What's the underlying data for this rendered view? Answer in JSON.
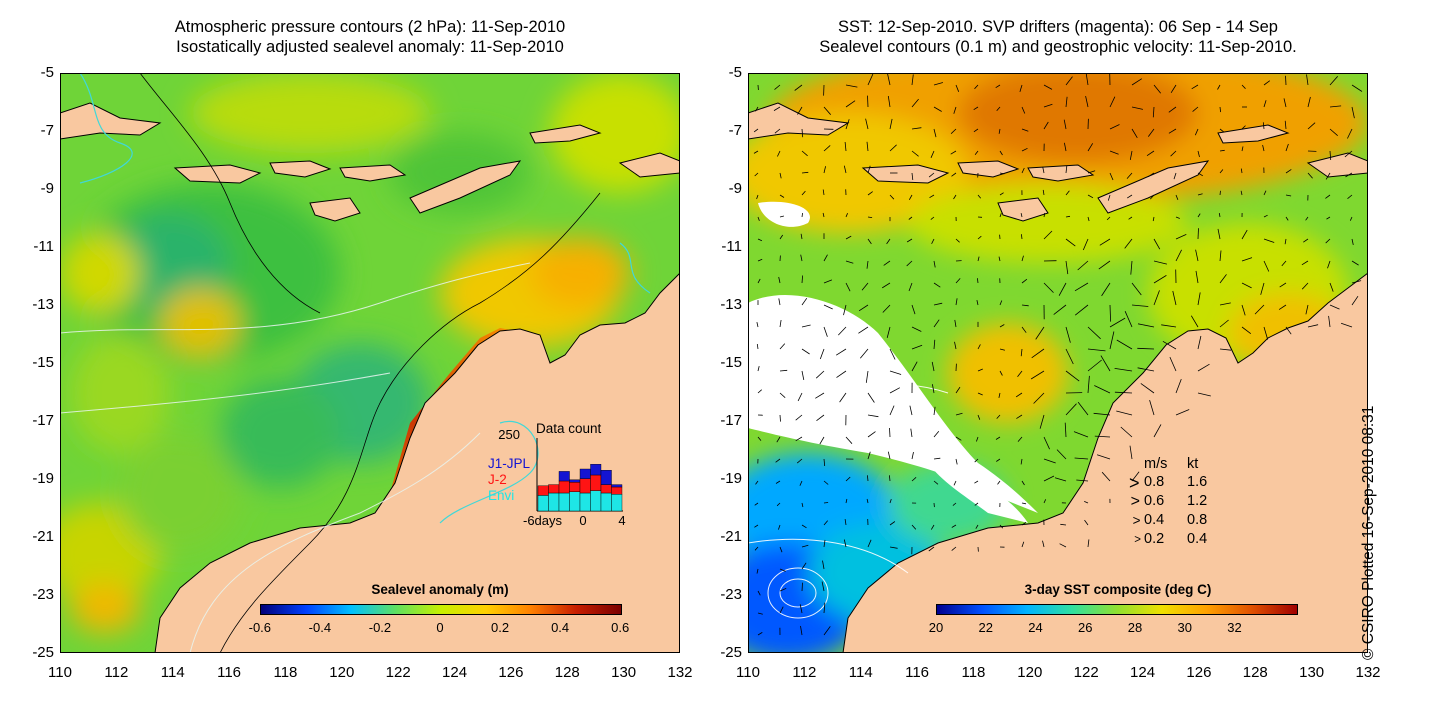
{
  "left_panel": {
    "title_line1": "Atmospheric pressure contours (2 hPa): 11-Sep-2010",
    "title_line2": "Isostatically adjusted sealevel anomaly: 11-Sep-2010",
    "colorbar_label": "Sealevel anomaly (m)",
    "colorbar_ticks": [
      "-0.6",
      "-0.4",
      "-0.2",
      "0",
      "0.2",
      "0.4",
      "0.6"
    ],
    "inset": {
      "ymax_label": "250",
      "title": "Data count",
      "legend": [
        "J1-JPL",
        "J-2",
        "Envi"
      ],
      "xtick_labels": [
        "-6days",
        "0",
        "4"
      ],
      "colors": {
        "j1": "#1414d2",
        "j2": "#ff1414",
        "envi": "#1ee6e6"
      },
      "bars": [
        {
          "envi": 0.26,
          "j2": 0.42,
          "j1": 0.0
        },
        {
          "envi": 0.3,
          "j2": 0.44,
          "j1": 0.2
        },
        {
          "envi": 0.3,
          "j2": 0.5,
          "j1": 0.66
        },
        {
          "envi": 0.32,
          "j2": 0.48,
          "j1": 0.52
        },
        {
          "envi": 0.3,
          "j2": 0.54,
          "j1": 0.7
        },
        {
          "envi": 0.34,
          "j2": 0.6,
          "j1": 0.78
        },
        {
          "envi": 0.3,
          "j2": 0.44,
          "j1": 0.68
        },
        {
          "envi": 0.28,
          "j2": 0.4,
          "j1": 0.44
        }
      ]
    }
  },
  "right_panel": {
    "title_line1": "SST: 12-Sep-2010. SVP drifters (magenta): 06 Sep - 14 Sep",
    "title_line2": "Sealevel contours (0.1 m) and geostrophic velocity: 11-Sep-2010.",
    "colorbar_label": "3-day SST composite (deg C)",
    "colorbar_ticks": [
      "20",
      "22",
      "24",
      "26",
      "28",
      "30",
      "32"
    ],
    "velocity_legend": {
      "header_ms": "m/s",
      "header_kt": "kt",
      "rows": [
        {
          "ms": "0.8",
          "kt": "1.6"
        },
        {
          "ms": "0.6",
          "kt": "1.2"
        },
        {
          "ms": "0.4",
          "kt": "0.8"
        },
        {
          "ms": "0.2",
          "kt": "0.4"
        }
      ]
    }
  },
  "axes": {
    "y_ticks": [
      "-5",
      "-7",
      "-9",
      "-11",
      "-13",
      "-15",
      "-17",
      "-19",
      "-21",
      "-23",
      "-25"
    ],
    "x_ticks": [
      "110",
      "112",
      "114",
      "116",
      "118",
      "120",
      "122",
      "124",
      "126",
      "128",
      "130",
      "132"
    ],
    "lat_range": [
      -25,
      -5
    ],
    "lon_range": [
      110,
      132
    ]
  },
  "credit": "© CSIRO Plotted 16-Sep-2010 08:31",
  "colors": {
    "land": "#f9c8a0",
    "sla_scale": [
      "#00007a",
      "#0040ff",
      "#00c0ff",
      "#60e060",
      "#c8f000",
      "#ffd000",
      "#ff8000",
      "#c81e00",
      "#7a0000"
    ],
    "sst_scale": [
      "#000090",
      "#0050ff",
      "#00b4ff",
      "#30e0a0",
      "#90e030",
      "#f0e000",
      "#ffa000",
      "#e05000",
      "#a00000"
    ]
  }
}
